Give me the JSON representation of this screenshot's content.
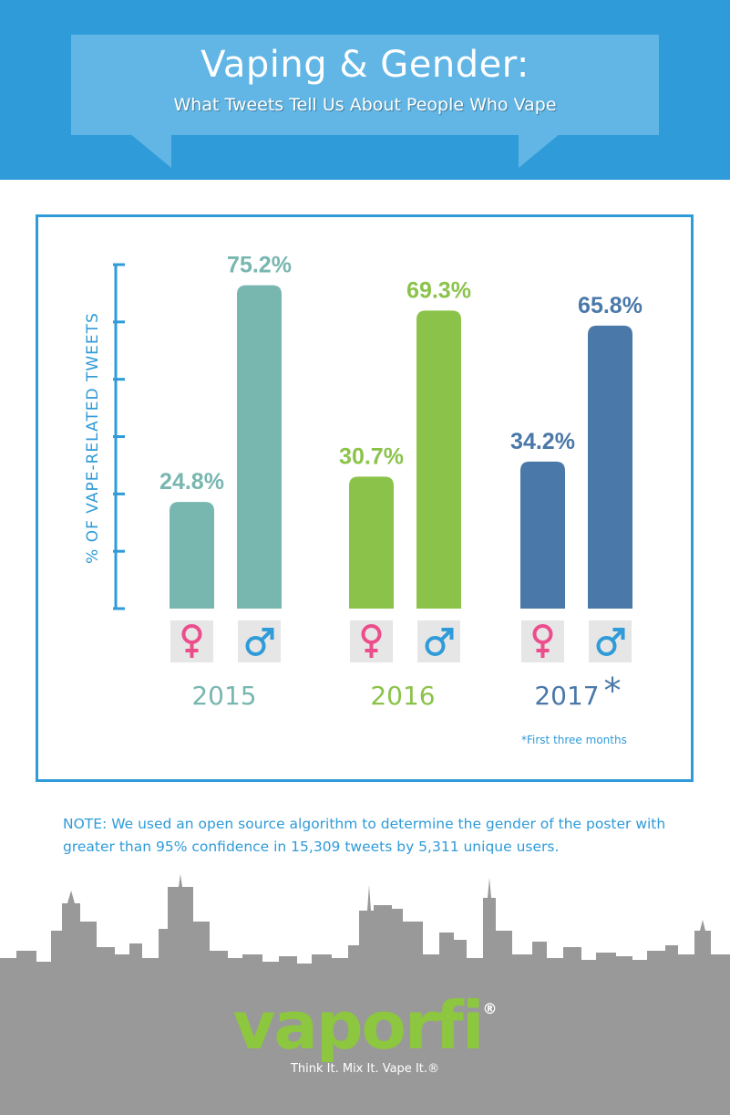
{
  "header": {
    "title": "Vaping & Gender:",
    "subtitle": "What Tweets Tell Us About People Who Vape"
  },
  "chart_data": {
    "type": "bar",
    "title": "",
    "ylabel": "% OF VAPE-RELATED TWEETS",
    "ylim": [
      0,
      80
    ],
    "categories": [
      "2015",
      "2016",
      "2017"
    ],
    "category_suffix": [
      "",
      "",
      "*"
    ],
    "series": [
      {
        "values": [
          24.8,
          30.7,
          34.2
        ],
        "labels": [
          "24.8%",
          "30.7%",
          "34.2%"
        ],
        "icon": "female-symbol-icon"
      },
      {
        "values": [
          75.2,
          69.3,
          65.8
        ],
        "labels": [
          "75.2%",
          "69.3%",
          "65.8%"
        ],
        "icon": "male-symbol-icon"
      }
    ],
    "colors": [
      "#78b6b0",
      "#8bc34a",
      "#4a78a8"
    ],
    "footnote": "*First three months",
    "legend": "none",
    "grid": false
  },
  "colors": {
    "accent": "#2f9bd8",
    "female_icon": "#ec4d8c",
    "male_icon": "#2f9bd8",
    "icon_box": "#e6e6e6",
    "skyline": "#999999"
  },
  "note": "NOTE: We used an open source algorithm to determine the gender of the poster with greater than 95% confidence in 15,309 tweets by 5,311 unique users.",
  "footer": {
    "logo_text": "vaporfi",
    "logo_registered": "®",
    "tagline": "Think It. Mix It. Vape It.®"
  }
}
